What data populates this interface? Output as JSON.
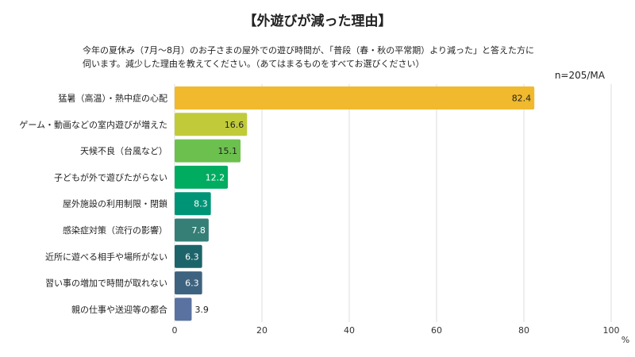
{
  "chart_data": {
    "type": "bar",
    "orientation": "horizontal",
    "title": "【外遊びが減った理由】",
    "subtitle_lines": [
      "今年の夏休み（7月～8月）のお子さまの屋外での遊び時間が、「普段（春・秋の平常期）より減った」と答えた方に",
      "伺います。減少した理由を教えてください。（あてはまるものをすべてお選びください）"
    ],
    "note": "n=205/MA",
    "unit": "%",
    "categories": [
      "猛暑（高温）・熱中症の心配",
      "ゲーム・動画などの室内遊びが増えた",
      "天候不良（台風など）",
      "子どもが外で遊びたがらない",
      "屋外施設の利用制限・閉鎖",
      "感染症対策（流行の影響）",
      "近所に遊べる相手や場所がない",
      "習い事の増加で時間が取れない",
      "親の仕事や送迎等の都合"
    ],
    "values": [
      82.4,
      16.6,
      15.1,
      12.2,
      8.3,
      7.8,
      6.3,
      6.3,
      3.9
    ],
    "colors": [
      "#F0B92E",
      "#C1CB3A",
      "#6CC04E",
      "#00AC60",
      "#009477",
      "#357F77",
      "#1C6469",
      "#3E6380",
      "#5A72A0"
    ],
    "xlim": [
      0,
      100
    ],
    "xticks": [
      0,
      20,
      40,
      60,
      80,
      100
    ],
    "grid": true
  }
}
